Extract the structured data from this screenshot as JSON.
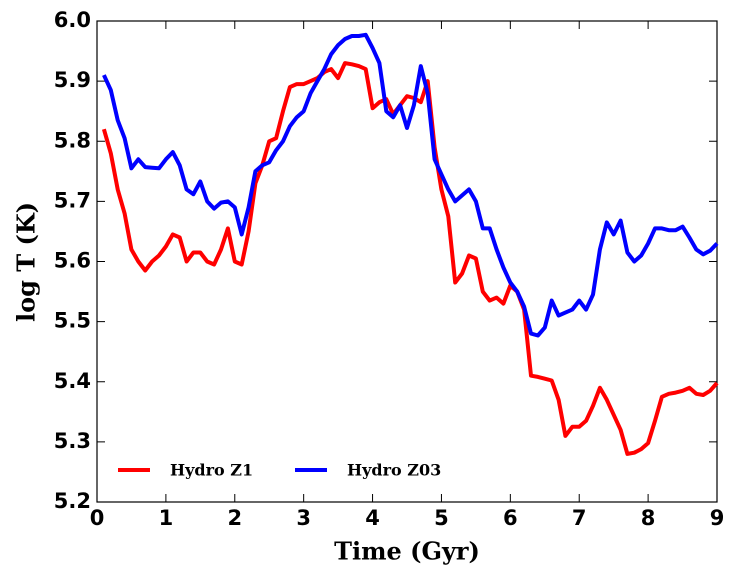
{
  "chart_data": {
    "type": "line",
    "x_label": "Time (Gyr)",
    "y_label": "log T (K)",
    "x": [
      0.1,
      0.2,
      0.3,
      0.4,
      0.5,
      0.6,
      0.7,
      0.8,
      0.9,
      1.0,
      1.1,
      1.2,
      1.3,
      1.4,
      1.5,
      1.6,
      1.7,
      1.8,
      1.9,
      2.0,
      2.1,
      2.2,
      2.3,
      2.4,
      2.5,
      2.6,
      2.7,
      2.8,
      2.9,
      3.0,
      3.1,
      3.2,
      3.3,
      3.4,
      3.5,
      3.6,
      3.7,
      3.8,
      3.9,
      4.0,
      4.1,
      4.2,
      4.3,
      4.4,
      4.5,
      4.6,
      4.7,
      4.8,
      4.9,
      5.0,
      5.1,
      5.2,
      5.3,
      5.4,
      5.5,
      5.6,
      5.7,
      5.8,
      5.9,
      6.0,
      6.1,
      6.2,
      6.3,
      6.4,
      6.5,
      6.6,
      6.7,
      6.8,
      6.9,
      7.0,
      7.1,
      7.2,
      7.3,
      7.4,
      7.5,
      7.6,
      7.7,
      7.8,
      7.9,
      8.0,
      8.1,
      8.2,
      8.3,
      8.4,
      8.5,
      8.6,
      8.7,
      8.8,
      8.9,
      9.0
    ],
    "series": [
      {
        "name": "Hydro Z1",
        "color": "#ff0000",
        "values": [
          5.82,
          5.78,
          5.72,
          5.68,
          5.62,
          5.6,
          5.585,
          5.6,
          5.61,
          5.625,
          5.645,
          5.64,
          5.6,
          5.615,
          5.615,
          5.6,
          5.595,
          5.62,
          5.655,
          5.6,
          5.595,
          5.65,
          5.73,
          5.76,
          5.8,
          5.805,
          5.85,
          5.89,
          5.895,
          5.895,
          5.9,
          5.905,
          5.915,
          5.92,
          5.905,
          5.93,
          5.928,
          5.925,
          5.92,
          5.855,
          5.865,
          5.87,
          5.845,
          5.86,
          5.875,
          5.872,
          5.865,
          5.9,
          5.79,
          5.72,
          5.675,
          5.565,
          5.58,
          5.61,
          5.605,
          5.55,
          5.535,
          5.54,
          5.53,
          5.56,
          5.55,
          5.52,
          5.41,
          5.408,
          5.405,
          5.402,
          5.37,
          5.31,
          5.325,
          5.325,
          5.335,
          5.36,
          5.39,
          5.37,
          5.345,
          5.32,
          5.28,
          5.282,
          5.288,
          5.298,
          5.335,
          5.375,
          5.38,
          5.382,
          5.385,
          5.39,
          5.38,
          5.378,
          5.385,
          5.398
        ]
      },
      {
        "name": "Hydro Z03",
        "color": "#0000ff",
        "values": [
          5.91,
          5.885,
          5.835,
          5.805,
          5.755,
          5.77,
          5.757,
          5.756,
          5.755,
          5.77,
          5.782,
          5.76,
          5.72,
          5.712,
          5.733,
          5.7,
          5.688,
          5.698,
          5.7,
          5.69,
          5.645,
          5.69,
          5.75,
          5.76,
          5.765,
          5.785,
          5.8,
          5.825,
          5.84,
          5.85,
          5.88,
          5.9,
          5.92,
          5.945,
          5.96,
          5.97,
          5.975,
          5.975,
          5.977,
          5.955,
          5.93,
          5.85,
          5.84,
          5.86,
          5.822,
          5.86,
          5.925,
          5.88,
          5.77,
          5.745,
          5.72,
          5.7,
          5.71,
          5.72,
          5.7,
          5.655,
          5.655,
          5.62,
          5.59,
          5.565,
          5.55,
          5.525,
          5.48,
          5.477,
          5.49,
          5.535,
          5.51,
          5.515,
          5.52,
          5.535,
          5.52,
          5.545,
          5.62,
          5.665,
          5.645,
          5.668,
          5.615,
          5.6,
          5.61,
          5.63,
          5.655,
          5.655,
          5.652,
          5.652,
          5.658,
          5.64,
          5.62,
          5.612,
          5.618,
          5.63
        ]
      }
    ],
    "xlim": [
      0,
      9
    ],
    "xticks": [
      0,
      1,
      2,
      3,
      4,
      5,
      6,
      7,
      8,
      9
    ],
    "ylim": [
      5.2,
      6.0
    ],
    "yticks": [
      5.2,
      5.3,
      5.4,
      5.5,
      5.6,
      5.7,
      5.8,
      5.9,
      {
        "value": 6.0,
        "label": "6.0"
      }
    ],
    "legend": "lower left"
  }
}
